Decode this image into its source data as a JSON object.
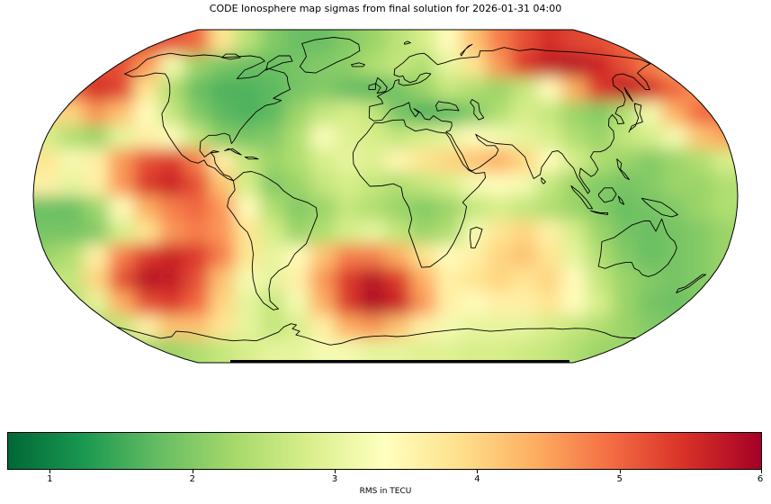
{
  "figure": {
    "title": "CODE Ionosphere map sigmas from final solution for 2026-01-31 04:00"
  },
  "colorbar": {
    "label": "RMS in TECU",
    "ticks": [
      "1",
      "2",
      "3",
      "4",
      "5",
      "6"
    ],
    "tick_values": [
      1,
      2,
      3,
      4,
      5,
      6
    ],
    "vmin": 0.7,
    "vmax": 6.0,
    "colormap": "RdYlGn_r",
    "colors": [
      "#006837",
      "#1a9850",
      "#66bd63",
      "#a6d96a",
      "#d9ef8b",
      "#ffffbf",
      "#fee08b",
      "#fdae61",
      "#f46d43",
      "#d73027",
      "#a50026"
    ]
  },
  "chart_data": {
    "type": "heatmap",
    "title": "CODE Ionosphere map sigmas from final solution for 2026-01-31 04:00",
    "projection": "robinson",
    "units": "TECU",
    "value_range": [
      0.7,
      6.0
    ],
    "colorbar_label": "RMS in TECU",
    "colorbar_ticks": [
      1,
      2,
      3,
      4,
      5,
      6
    ],
    "grid_note": "RMS sigma values (TECU) sampled on a 28x14 grid over the map bounding box, left-to-right, top-to-bottom",
    "grid": [
      [
        5.3,
        5.3,
        5.3,
        5.3,
        5.3,
        5.2,
        5.0,
        3.8,
        2.5,
        2.0,
        1.8,
        1.8,
        2.0,
        2.2,
        2.5,
        2.8,
        3.4,
        4.2,
        4.8,
        5.2,
        5.5,
        5.3,
        5.2,
        5.0,
        5.0,
        5.0,
        5.0,
        5.0
      ],
      [
        5.2,
        5.2,
        5.2,
        5.2,
        4.6,
        3.2,
        2.2,
        1.9,
        1.8,
        1.8,
        1.9,
        2.0,
        2.1,
        2.4,
        2.6,
        2.4,
        3.0,
        3.8,
        4.6,
        5.4,
        5.7,
        5.8,
        5.6,
        5.2,
        4.8,
        4.5,
        4.5,
        4.5
      ],
      [
        5.0,
        5.0,
        5.5,
        5.3,
        3.8,
        2.4,
        1.8,
        1.6,
        1.6,
        1.7,
        1.9,
        2.0,
        1.8,
        1.7,
        1.9,
        2.2,
        2.6,
        2.4,
        2.2,
        2.6,
        3.4,
        4.4,
        5.4,
        5.7,
        5.5,
        5.0,
        4.6,
        4.6
      ],
      [
        4.0,
        4.0,
        4.6,
        4.2,
        3.4,
        2.6,
        2.0,
        1.7,
        1.6,
        1.7,
        2.2,
        2.6,
        2.8,
        2.6,
        1.9,
        1.6,
        1.7,
        2.0,
        2.4,
        2.8,
        2.6,
        2.2,
        2.0,
        2.4,
        3.2,
        4.4,
        5.0,
        5.0
      ],
      [
        2.8,
        2.4,
        2.2,
        3.0,
        3.6,
        3.4,
        2.6,
        2.0,
        1.9,
        2.0,
        2.4,
        3.3,
        2.9,
        2.8,
        2.6,
        2.8,
        3.0,
        3.4,
        3.2,
        3.0,
        2.8,
        2.4,
        2.2,
        2.6,
        2.8,
        3.2,
        4.2,
        4.5
      ],
      [
        3.8,
        3.2,
        3.6,
        4.6,
        5.2,
        5.4,
        4.8,
        3.6,
        2.6,
        2.2,
        2.4,
        2.8,
        3.0,
        2.9,
        3.5,
        3.8,
        4.0,
        4.2,
        4.4,
        4.0,
        3.4,
        2.8,
        2.4,
        2.2,
        2.0,
        2.2,
        2.4,
        2.8
      ],
      [
        3.6,
        3.0,
        3.6,
        4.6,
        5.4,
        5.6,
        5.2,
        4.2,
        2.8,
        2.0,
        2.2,
        2.6,
        2.8,
        2.6,
        2.4,
        2.6,
        2.8,
        3.2,
        3.4,
        3.2,
        2.6,
        2.2,
        2.0,
        1.9,
        2.0,
        2.2,
        2.2,
        2.4
      ],
      [
        1.8,
        1.8,
        2.2,
        3.4,
        4.4,
        4.8,
        5.0,
        4.6,
        3.4,
        2.4,
        2.0,
        2.2,
        2.6,
        2.4,
        2.2,
        2.0,
        2.2,
        2.6,
        2.8,
        2.6,
        2.4,
        2.2,
        2.0,
        1.8,
        1.9,
        2.0,
        2.2,
        2.4
      ],
      [
        1.9,
        1.9,
        2.0,
        2.8,
        3.8,
        4.6,
        4.8,
        4.6,
        3.8,
        2.8,
        2.2,
        2.4,
        2.8,
        3.0,
        2.6,
        2.2,
        2.4,
        3.2,
        3.8,
        4.0,
        3.6,
        2.8,
        2.2,
        1.9,
        1.8,
        1.9,
        2.0,
        2.2
      ],
      [
        2.2,
        2.4,
        3.6,
        4.8,
        5.4,
        5.6,
        5.4,
        4.8,
        3.8,
        3.0,
        3.4,
        4.2,
        4.8,
        4.8,
        4.4,
        3.8,
        3.4,
        3.6,
        4.0,
        4.2,
        3.8,
        3.0,
        2.4,
        2.0,
        1.8,
        1.9,
        2.0,
        2.2
      ],
      [
        2.6,
        2.6,
        4.0,
        5.2,
        5.8,
        5.7,
        5.2,
        4.2,
        3.2,
        3.0,
        3.6,
        4.6,
        5.4,
        5.8,
        5.4,
        4.4,
        3.6,
        3.8,
        4.0,
        3.8,
        4.0,
        3.4,
        2.6,
        2.2,
        2.0,
        1.9,
        2.0,
        2.2
      ],
      [
        2.4,
        2.4,
        3.0,
        4.4,
        5.2,
        5.4,
        5.0,
        4.0,
        3.0,
        2.6,
        3.2,
        4.4,
        5.4,
        5.9,
        5.6,
        4.6,
        3.6,
        3.4,
        3.6,
        3.6,
        3.8,
        3.4,
        2.8,
        2.2,
        1.9,
        1.8,
        2.0,
        2.0
      ],
      [
        2.2,
        2.2,
        2.2,
        2.6,
        3.6,
        4.2,
        4.2,
        3.8,
        3.0,
        2.6,
        2.8,
        3.6,
        4.4,
        4.6,
        4.2,
        3.6,
        3.2,
        3.0,
        3.0,
        3.0,
        2.8,
        2.6,
        2.4,
        2.2,
        2.0,
        2.0,
        2.0,
        2.0
      ],
      [
        2.2,
        2.2,
        2.2,
        2.2,
        2.2,
        2.2,
        2.4,
        2.6,
        2.8,
        3.0,
        3.0,
        3.2,
        3.2,
        3.0,
        3.0,
        2.9,
        2.9,
        2.8,
        2.8,
        2.7,
        2.6,
        2.4,
        2.2,
        2.2,
        2.2,
        2.2,
        2.2,
        2.2
      ]
    ]
  }
}
